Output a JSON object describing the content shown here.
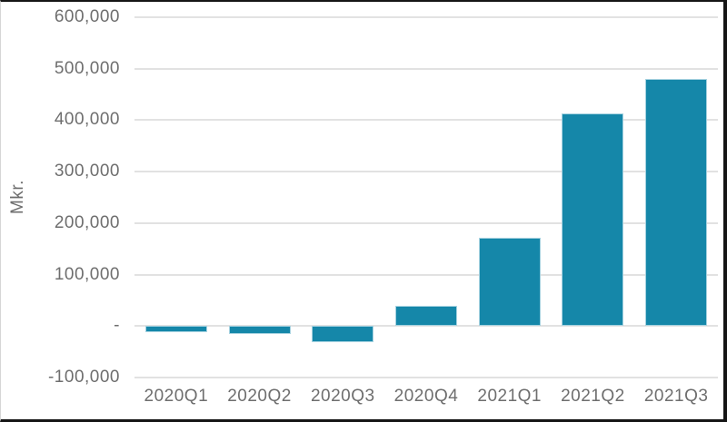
{
  "chart_data": {
    "type": "bar",
    "title": "",
    "xlabel": "",
    "ylabel": "Mkr.",
    "categories": [
      "2020Q1",
      "2020Q2",
      "2020Q3",
      "2020Q4",
      "2021Q1",
      "2021Q2",
      "2021Q3"
    ],
    "values": [
      -12000,
      -16000,
      -32000,
      39000,
      172000,
      413000,
      480000
    ],
    "ylim": [
      -100000,
      600000
    ],
    "ytick_interval": 100000,
    "ytick_labels_top_to_bottom": [
      "600,000",
      "500,000",
      "400,000",
      "300,000",
      "200,000",
      "100,000",
      "-",
      "-100,000"
    ],
    "grid": true,
    "legend": "none",
    "bar_color": "#1587a9",
    "bar_border_color": "#a6d2e0",
    "gridline_color": "#e2e2e2",
    "axis_text_color": "#6e6e6e",
    "frame_color": "#151515"
  }
}
